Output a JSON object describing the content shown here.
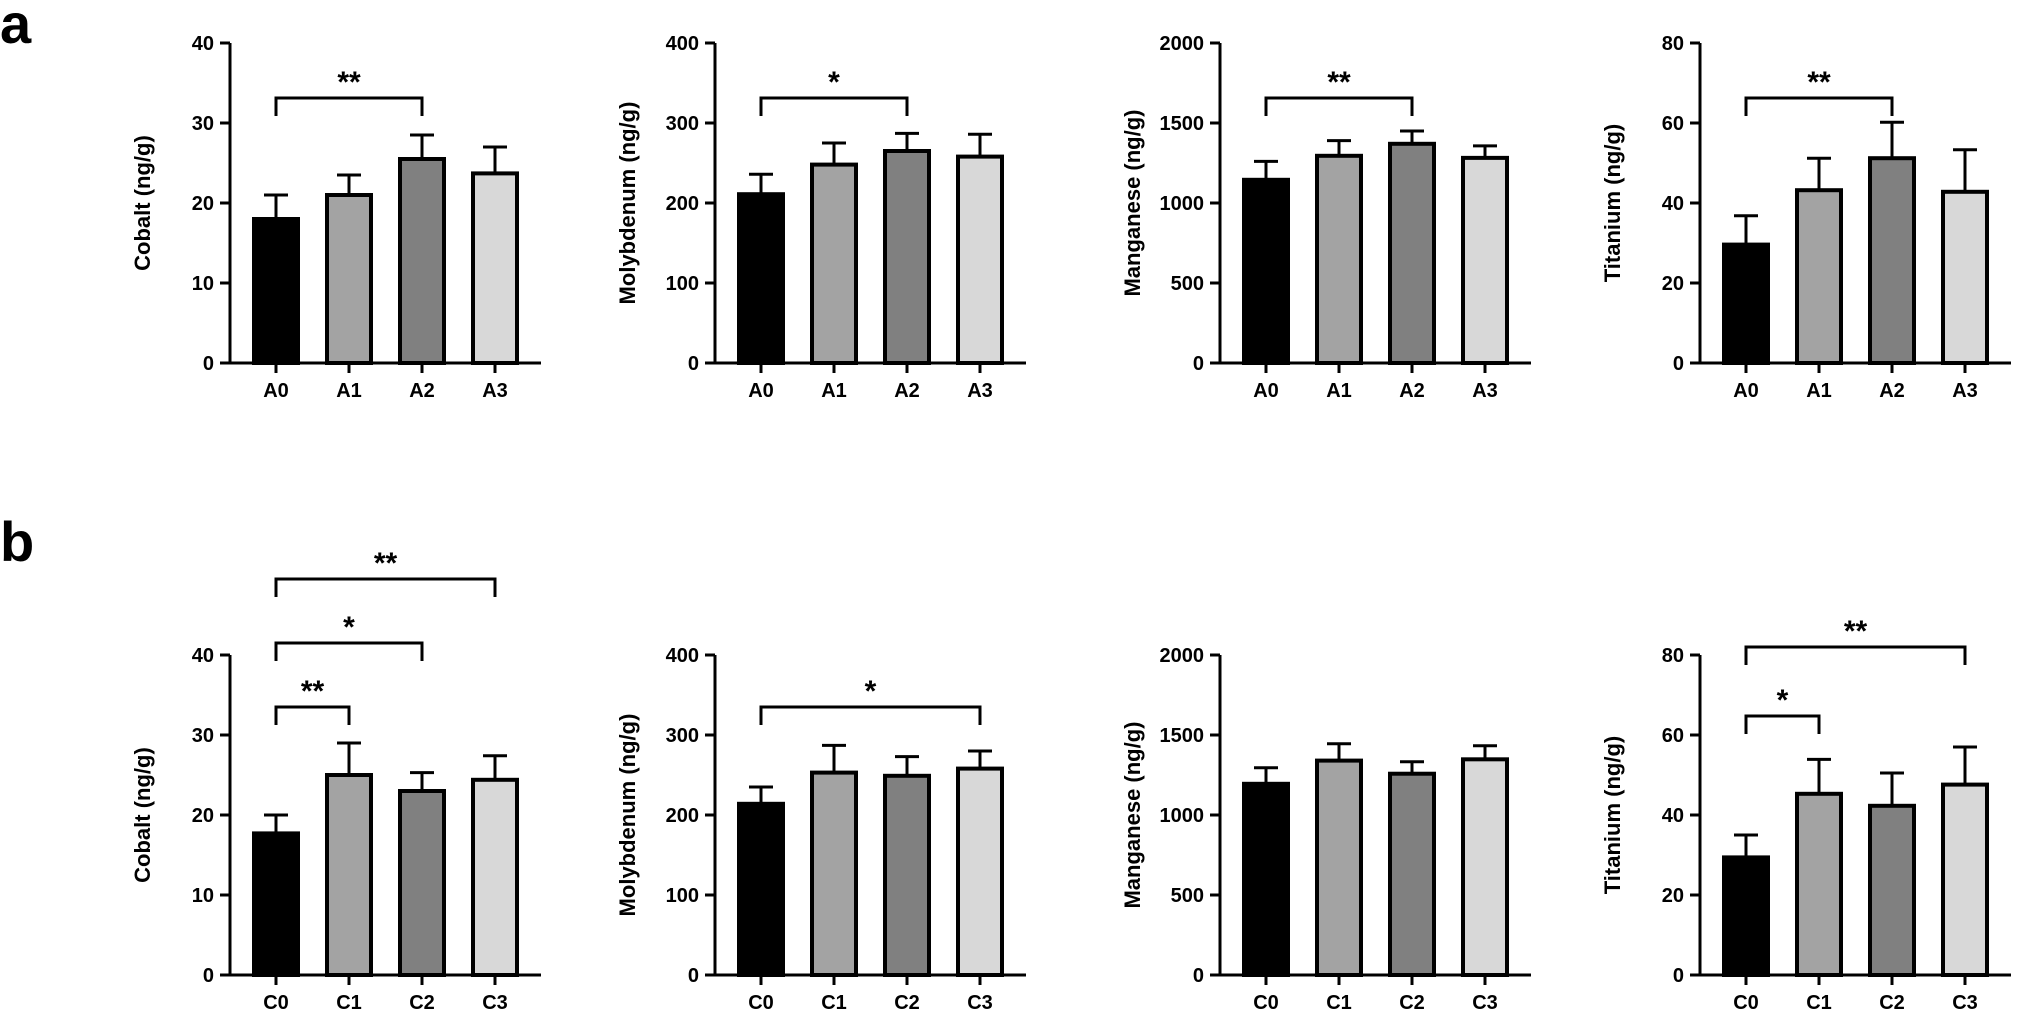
{
  "figure": {
    "panel_labels": [
      "a",
      "b"
    ]
  },
  "chart_data": [
    {
      "type": "bar",
      "panel": "a",
      "ylabel": "Cobalt (ng/g)",
      "categories": [
        "A0",
        "A1",
        "A2",
        "A3"
      ],
      "values": [
        18.0,
        21.0,
        25.5,
        23.7
      ],
      "errors": [
        3.0,
        2.5,
        3.0,
        3.3
      ],
      "ylim": [
        0,
        40
      ],
      "yticks": [
        0,
        10,
        20,
        30,
        40
      ],
      "tick_labels": [
        "0",
        "10",
        "20",
        "30",
        "40"
      ],
      "colors": [
        "#000000",
        "#a3a3a3",
        "#808080",
        "#d8d8d8"
      ],
      "significance": [
        {
          "from": 0,
          "to": 2,
          "label": "**"
        }
      ]
    },
    {
      "type": "bar",
      "panel": "a",
      "ylabel": "Molybdenum (ng/g)",
      "categories": [
        "A0",
        "A1",
        "A2",
        "A3"
      ],
      "values": [
        211,
        248,
        265,
        258
      ],
      "errors": [
        25,
        27,
        22,
        28
      ],
      "ylim": [
        0,
        400
      ],
      "yticks": [
        0,
        100,
        200,
        300,
        400
      ],
      "tick_labels": [
        "0",
        "100",
        "200",
        "300",
        "400"
      ],
      "colors": [
        "#000000",
        "#a3a3a3",
        "#808080",
        "#d8d8d8"
      ],
      "significance": [
        {
          "from": 0,
          "to": 2,
          "label": "*"
        }
      ]
    },
    {
      "type": "bar",
      "panel": "a",
      "ylabel": "Manganese (ng/g)",
      "categories": [
        "A0",
        "A1",
        "A2",
        "A3"
      ],
      "values": [
        1145,
        1295,
        1370,
        1282
      ],
      "errors": [
        115,
        95,
        80,
        75
      ],
      "ylim": [
        0,
        2000
      ],
      "yticks": [
        0,
        500,
        1000,
        1500,
        2000
      ],
      "tick_labels": [
        "0",
        "500",
        "1000",
        "1500",
        "2000"
      ],
      "colors": [
        "#000000",
        "#a3a3a3",
        "#808080",
        "#d8d8d8"
      ],
      "significance": [
        {
          "from": 0,
          "to": 2,
          "label": "**"
        }
      ]
    },
    {
      "type": "bar",
      "panel": "a",
      "ylabel": "Titanium (ng/g)",
      "categories": [
        "A0",
        "A1",
        "A2",
        "A3"
      ],
      "values": [
        29.6,
        43.2,
        51.2,
        42.8
      ],
      "errors": [
        7.2,
        8.0,
        9.0,
        10.5
      ],
      "ylim": [
        0,
        80
      ],
      "yticks": [
        0,
        20,
        40,
        60,
        80
      ],
      "tick_labels": [
        "0",
        "20",
        "40",
        "60",
        "80"
      ],
      "colors": [
        "#000000",
        "#a3a3a3",
        "#808080",
        "#d8d8d8"
      ],
      "significance": [
        {
          "from": 0,
          "to": 2,
          "label": "**"
        }
      ]
    },
    {
      "type": "bar",
      "panel": "b",
      "ylabel": "Cobalt (ng/g)",
      "categories": [
        "C0",
        "C1",
        "C2",
        "C3"
      ],
      "values": [
        17.7,
        25.0,
        23.0,
        24.4
      ],
      "errors": [
        2.3,
        4.0,
        2.3,
        3.0
      ],
      "ylim": [
        0,
        40
      ],
      "yticks": [
        0,
        10,
        20,
        30,
        40
      ],
      "tick_labels": [
        "0",
        "10",
        "20",
        "30",
        "40"
      ],
      "colors": [
        "#000000",
        "#a3a3a3",
        "#808080",
        "#d8d8d8"
      ],
      "significance": [
        {
          "from": 0,
          "to": 1,
          "label": "**"
        },
        {
          "from": 0,
          "to": 2,
          "label": "*"
        },
        {
          "from": 0,
          "to": 3,
          "label": "**"
        }
      ]
    },
    {
      "type": "bar",
      "panel": "b",
      "ylabel": "Molybdenum (ng/g)",
      "categories": [
        "C0",
        "C1",
        "C2",
        "C3"
      ],
      "values": [
        214,
        253,
        249,
        258
      ],
      "errors": [
        21,
        34,
        24,
        22
      ],
      "ylim": [
        0,
        400
      ],
      "yticks": [
        0,
        100,
        200,
        300,
        400
      ],
      "tick_labels": [
        "0",
        "100",
        "200",
        "300",
        "400"
      ],
      "colors": [
        "#000000",
        "#a3a3a3",
        "#808080",
        "#d8d8d8"
      ],
      "significance": [
        {
          "from": 0,
          "to": 3,
          "label": "*"
        }
      ]
    },
    {
      "type": "bar",
      "panel": "b",
      "ylabel": "Manganese (ng/g)",
      "categories": [
        "C0",
        "C1",
        "C2",
        "C3"
      ],
      "values": [
        1195,
        1340,
        1258,
        1348
      ],
      "errors": [
        100,
        105,
        75,
        85
      ],
      "ylim": [
        0,
        2000
      ],
      "yticks": [
        0,
        500,
        1000,
        1500,
        2000
      ],
      "tick_labels": [
        "0",
        "500",
        "1000",
        "1500",
        "2000"
      ],
      "colors": [
        "#000000",
        "#a3a3a3",
        "#808080",
        "#d8d8d8"
      ],
      "significance": []
    },
    {
      "type": "bar",
      "panel": "b",
      "ylabel": "Titanium (ng/g)",
      "categories": [
        "C0",
        "C1",
        "C2",
        "C3"
      ],
      "values": [
        29.4,
        45.3,
        42.3,
        47.6
      ],
      "errors": [
        5.6,
        8.6,
        8.2,
        9.4
      ],
      "ylim": [
        0,
        80
      ],
      "yticks": [
        0,
        20,
        40,
        60,
        80
      ],
      "tick_labels": [
        "0",
        "20",
        "40",
        "60",
        "80"
      ],
      "colors": [
        "#000000",
        "#a3a3a3",
        "#808080",
        "#d8d8d8"
      ],
      "significance": [
        {
          "from": 0,
          "to": 1,
          "label": "*"
        },
        {
          "from": 0,
          "to": 3,
          "label": "**"
        }
      ]
    }
  ]
}
